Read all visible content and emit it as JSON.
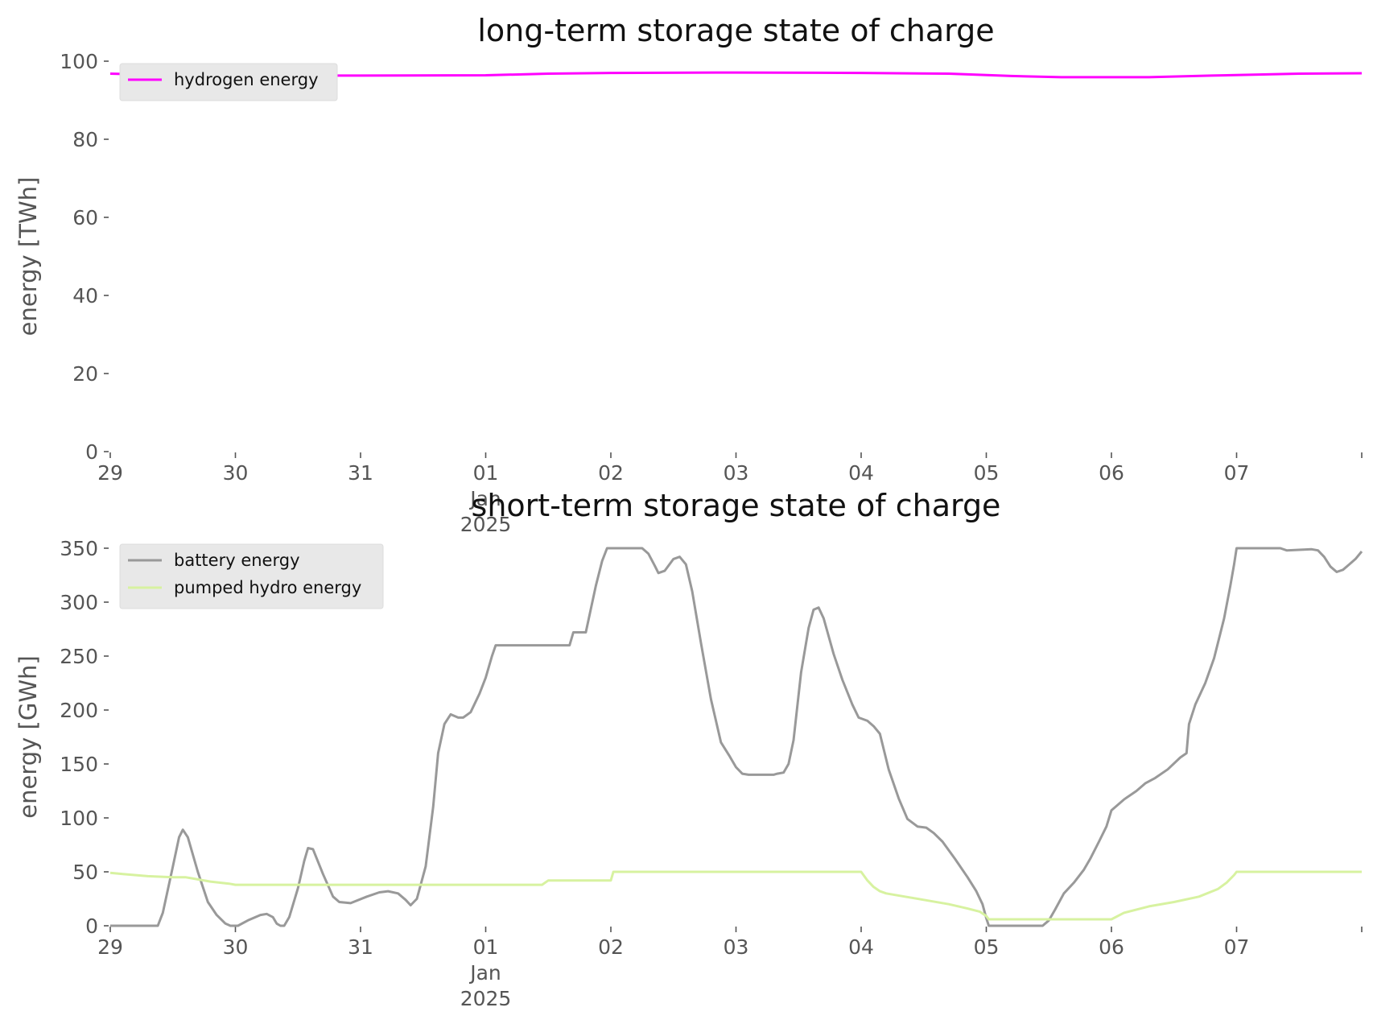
{
  "chart_data": [
    {
      "type": "line",
      "title": "long-term storage state of charge",
      "xlabel": "",
      "ylabel": "energy [TWh]",
      "ylim": [
        0,
        100
      ],
      "yticks": [
        0,
        20,
        40,
        60,
        80,
        100
      ],
      "xlim": [
        0,
        10
      ],
      "xticks": [
        {
          "x": 0,
          "label": "29"
        },
        {
          "x": 1,
          "label": "30"
        },
        {
          "x": 2,
          "label": "31"
        },
        {
          "x": 3,
          "label": "01\nJan\n2025"
        },
        {
          "x": 4,
          "label": "02"
        },
        {
          "x": 5,
          "label": "03"
        },
        {
          "x": 6,
          "label": "04"
        },
        {
          "x": 7,
          "label": "05"
        },
        {
          "x": 8,
          "label": "06"
        },
        {
          "x": 9,
          "label": "07"
        },
        {
          "x": 10,
          "label": ""
        }
      ],
      "x_unit": "days since 29 Dec 2024",
      "grid": false,
      "legend": "upper left",
      "series": [
        {
          "name": "hydrogen energy",
          "color": "#ff00ff",
          "points": [
            [
              0,
              96.8
            ],
            [
              0.5,
              96.4
            ],
            [
              1,
              96.3
            ],
            [
              2,
              96.3
            ],
            [
              3,
              96.4
            ],
            [
              3.5,
              96.8
            ],
            [
              4,
              97
            ],
            [
              5,
              97.1
            ],
            [
              6,
              97
            ],
            [
              6.7,
              96.8
            ],
            [
              7.2,
              96.2
            ],
            [
              7.6,
              95.9
            ],
            [
              8.3,
              95.9
            ],
            [
              8.8,
              96.3
            ],
            [
              9.5,
              96.8
            ],
            [
              10,
              96.9
            ]
          ]
        }
      ]
    },
    {
      "type": "line",
      "title": "short-term storage state of charge",
      "xlabel": "",
      "ylabel": "energy [GWh]",
      "ylim": [
        0,
        350
      ],
      "yticks": [
        0,
        50,
        100,
        150,
        200,
        250,
        300,
        350
      ],
      "xlim": [
        0,
        10
      ],
      "xticks": [
        {
          "x": 0,
          "label": "29"
        },
        {
          "x": 1,
          "label": "30"
        },
        {
          "x": 2,
          "label": "31"
        },
        {
          "x": 3,
          "label": "01\nJan\n2025"
        },
        {
          "x": 4,
          "label": "02"
        },
        {
          "x": 5,
          "label": "03"
        },
        {
          "x": 6,
          "label": "04"
        },
        {
          "x": 7,
          "label": "05"
        },
        {
          "x": 8,
          "label": "06"
        },
        {
          "x": 9,
          "label": "07"
        },
        {
          "x": 10,
          "label": ""
        }
      ],
      "x_unit": "days since 29 Dec 2024",
      "grid": false,
      "legend": "upper left",
      "series": [
        {
          "name": "battery energy",
          "color": "#999999",
          "points": [
            [
              0,
              0
            ],
            [
              0.38,
              0
            ],
            [
              0.42,
              12
            ],
            [
              0.5,
              55
            ],
            [
              0.55,
              82
            ],
            [
              0.58,
              89
            ],
            [
              0.62,
              82
            ],
            [
              0.7,
              50
            ],
            [
              0.78,
              22
            ],
            [
              0.85,
              10
            ],
            [
              0.92,
              2
            ],
            [
              0.96,
              0
            ],
            [
              1.02,
              0
            ],
            [
              1.1,
              5
            ],
            [
              1.2,
              10
            ],
            [
              1.25,
              11
            ],
            [
              1.3,
              8
            ],
            [
              1.33,
              2
            ],
            [
              1.36,
              0
            ],
            [
              1.39,
              0
            ],
            [
              1.43,
              8
            ],
            [
              1.5,
              35
            ],
            [
              1.55,
              60
            ],
            [
              1.58,
              72
            ],
            [
              1.62,
              71
            ],
            [
              1.7,
              48
            ],
            [
              1.78,
              27
            ],
            [
              1.83,
              22
            ],
            [
              1.92,
              21
            ],
            [
              2.05,
              27
            ],
            [
              2.15,
              31
            ],
            [
              2.22,
              32
            ],
            [
              2.3,
              30
            ],
            [
              2.36,
              24
            ],
            [
              2.4,
              19
            ],
            [
              2.45,
              25
            ],
            [
              2.52,
              55
            ],
            [
              2.58,
              110
            ],
            [
              2.62,
              160
            ],
            [
              2.67,
              187
            ],
            [
              2.72,
              196
            ],
            [
              2.78,
              193
            ],
            [
              2.82,
              193
            ],
            [
              2.88,
              198
            ],
            [
              2.95,
              215
            ],
            [
              3.0,
              230
            ],
            [
              3.05,
              250
            ],
            [
              3.08,
              260
            ],
            [
              3.67,
              260
            ],
            [
              3.7,
              272
            ],
            [
              3.8,
              272
            ],
            [
              3.88,
              315
            ],
            [
              3.93,
              338
            ],
            [
              3.97,
              350
            ],
            [
              4.25,
              350
            ],
            [
              4.3,
              345
            ],
            [
              4.35,
              334
            ],
            [
              4.38,
              327
            ],
            [
              4.43,
              329
            ],
            [
              4.5,
              340
            ],
            [
              4.55,
              342
            ],
            [
              4.6,
              335
            ],
            [
              4.65,
              310
            ],
            [
              4.72,
              262
            ],
            [
              4.8,
              210
            ],
            [
              4.88,
              170
            ],
            [
              4.95,
              157
            ],
            [
              5.0,
              147
            ],
            [
              5.05,
              141
            ],
            [
              5.1,
              140
            ],
            [
              5.2,
              140
            ],
            [
              5.3,
              140
            ],
            [
              5.33,
              141
            ],
            [
              5.38,
              142
            ],
            [
              5.42,
              150
            ],
            [
              5.46,
              172
            ],
            [
              5.52,
              235
            ],
            [
              5.58,
              276
            ],
            [
              5.62,
              293
            ],
            [
              5.66,
              295
            ],
            [
              5.7,
              285
            ],
            [
              5.78,
              252
            ],
            [
              5.85,
              228
            ],
            [
              5.93,
              205
            ],
            [
              5.98,
              193
            ],
            [
              6.05,
              190
            ],
            [
              6.1,
              185
            ],
            [
              6.15,
              178
            ],
            [
              6.22,
              145
            ],
            [
              6.3,
              118
            ],
            [
              6.37,
              99
            ],
            [
              6.45,
              92
            ],
            [
              6.52,
              91
            ],
            [
              6.58,
              86
            ],
            [
              6.65,
              78
            ],
            [
              6.75,
              62
            ],
            [
              6.85,
              45
            ],
            [
              6.92,
              32
            ],
            [
              6.97,
              20
            ],
            [
              7.0,
              7
            ],
            [
              7.02,
              0
            ],
            [
              7.45,
              0
            ],
            [
              7.5,
              5
            ],
            [
              7.55,
              15
            ],
            [
              7.62,
              30
            ],
            [
              7.7,
              40
            ],
            [
              7.78,
              52
            ],
            [
              7.83,
              62
            ],
            [
              7.9,
              78
            ],
            [
              7.96,
              92
            ],
            [
              8.0,
              107
            ],
            [
              8.1,
              117
            ],
            [
              8.2,
              125
            ],
            [
              8.27,
              132
            ],
            [
              8.35,
              137
            ],
            [
              8.45,
              145
            ],
            [
              8.55,
              156
            ],
            [
              8.6,
              160
            ],
            [
              8.62,
              187
            ],
            [
              8.67,
              205
            ],
            [
              8.75,
              225
            ],
            [
              8.82,
              248
            ],
            [
              8.9,
              285
            ],
            [
              8.95,
              315
            ],
            [
              8.98,
              335
            ],
            [
              9.0,
              350
            ],
            [
              9.35,
              350
            ],
            [
              9.4,
              348
            ],
            [
              9.6,
              349
            ],
            [
              9.65,
              348
            ],
            [
              9.7,
              342
            ],
            [
              9.75,
              333
            ],
            [
              9.8,
              328
            ],
            [
              9.85,
              330
            ],
            [
              9.9,
              335
            ],
            [
              9.95,
              340
            ],
            [
              10.0,
              347
            ]
          ]
        },
        {
          "name": "pumped hydro energy",
          "color": "#d7f2a0",
          "points": [
            [
              0,
              49
            ],
            [
              0.1,
              48
            ],
            [
              0.3,
              46
            ],
            [
              0.5,
              45
            ],
            [
              0.6,
              45
            ],
            [
              0.65,
              44
            ],
            [
              0.8,
              41
            ],
            [
              0.95,
              39
            ],
            [
              1.0,
              38
            ],
            [
              1.5,
              38
            ],
            [
              2.0,
              38
            ],
            [
              3.0,
              38
            ],
            [
              3.45,
              38
            ],
            [
              3.5,
              42
            ],
            [
              4.0,
              42
            ],
            [
              4.02,
              50
            ],
            [
              5.0,
              50
            ],
            [
              6.0,
              50
            ],
            [
              6.05,
              42
            ],
            [
              6.1,
              36
            ],
            [
              6.15,
              32
            ],
            [
              6.2,
              30
            ],
            [
              6.35,
              27
            ],
            [
              6.5,
              24
            ],
            [
              6.7,
              20
            ],
            [
              6.85,
              16
            ],
            [
              6.95,
              13
            ],
            [
              7.0,
              9
            ],
            [
              7.02,
              6
            ],
            [
              7.5,
              6
            ],
            [
              8.0,
              6
            ],
            [
              8.1,
              12
            ],
            [
              8.3,
              18
            ],
            [
              8.5,
              22
            ],
            [
              8.7,
              27
            ],
            [
              8.85,
              34
            ],
            [
              8.92,
              40
            ],
            [
              8.98,
              47
            ],
            [
              9.0,
              50
            ],
            [
              10.0,
              50
            ]
          ]
        }
      ]
    }
  ]
}
